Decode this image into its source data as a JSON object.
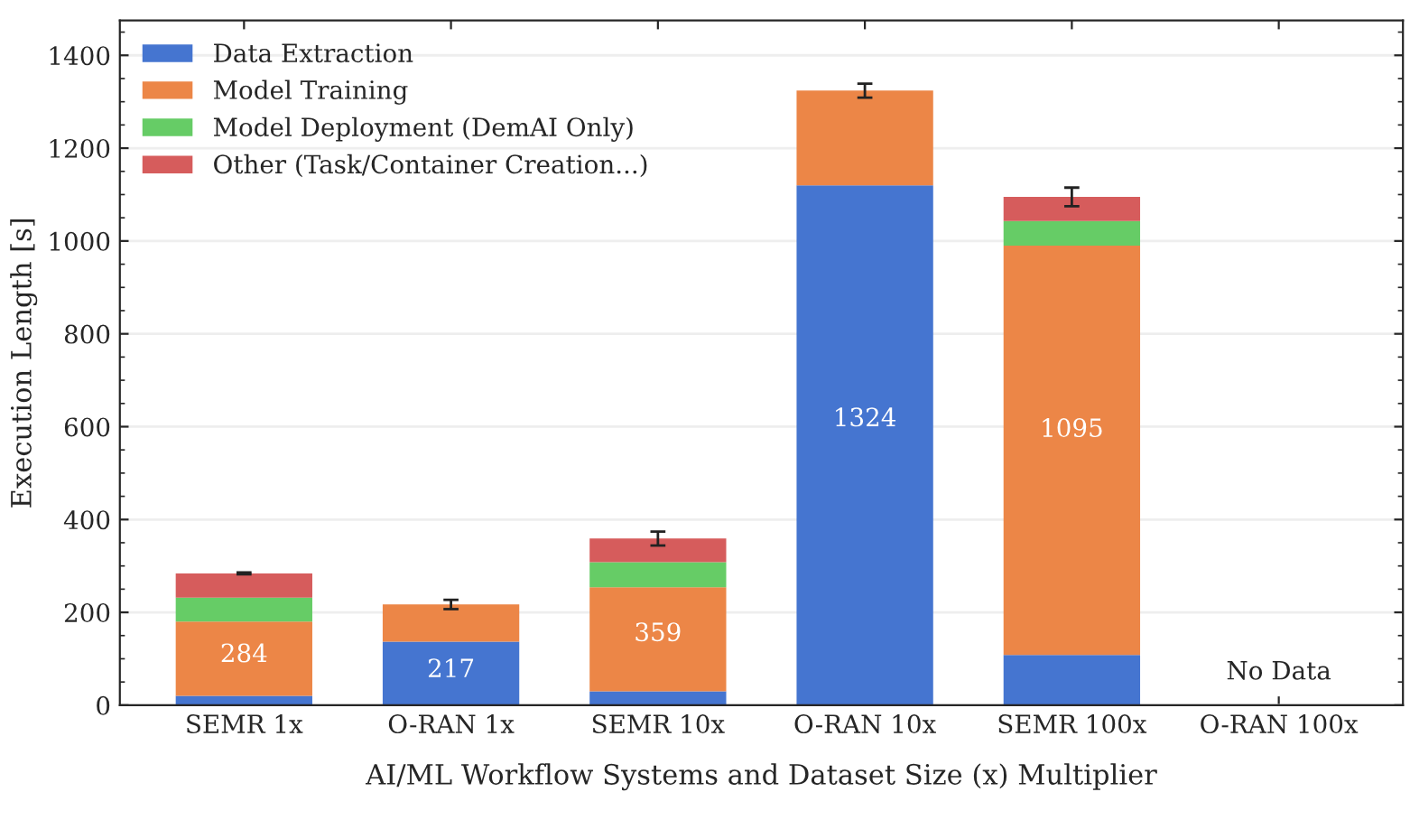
{
  "chart_data": {
    "type": "bar",
    "stacked": true,
    "xlabel": "AI/ML Workflow Systems and Dataset Size (x) Multiplier",
    "ylabel": "Execution Length [s]",
    "categories": [
      "SEMR 1x",
      "O-RAN 1x",
      "SEMR 10x",
      "O-RAN 10x",
      "SEMR 100x",
      "O-RAN 100x"
    ],
    "series": [
      {
        "name": "Data Extraction",
        "color": "#4575d0",
        "values": [
          20,
          137,
          30,
          1120,
          108,
          null
        ]
      },
      {
        "name": "Model Training",
        "color": "#ec8647",
        "values": [
          160,
          80,
          224,
          204,
          882,
          null
        ],
        "errors": [
          null,
          10,
          null,
          15,
          null,
          null
        ]
      },
      {
        "name": "Model Deployment (DemAI Only)",
        "color": "#66cc66",
        "values": [
          52,
          null,
          54,
          null,
          53,
          null
        ]
      },
      {
        "name": "Other (Task/Container Creation...)",
        "color": "#d65c5c",
        "values": [
          52,
          null,
          51,
          null,
          52,
          null
        ],
        "errors": [
          2,
          null,
          15,
          null,
          20,
          null
        ]
      }
    ],
    "totals": [
      "284",
      "217",
      "359",
      "1324",
      "1095",
      null
    ],
    "annotations": [
      "No Data"
    ],
    "ylim": [
      0,
      1475
    ],
    "yticks": [
      0,
      200,
      400,
      600,
      800,
      1000,
      1200,
      1400
    ],
    "grid": "y",
    "legend": "top left"
  }
}
